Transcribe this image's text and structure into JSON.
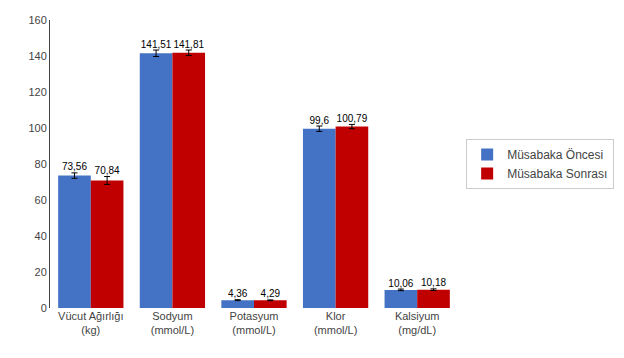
{
  "chart_data": {
    "type": "bar",
    "categories": [
      "Vücut Ağırlığı\n(kg)",
      "Sodyum\n(mmol/L)",
      "Potasyum\n(mmol/L)",
      "Klor\n(mmol/L)",
      "Kalsiyum\n(mg/dL)"
    ],
    "series": [
      {
        "name": "Müsabaka Öncesi",
        "color": "#4472C4",
        "values": [
          73.56,
          141.51,
          4.36,
          99.6,
          10.06
        ],
        "errors": [
          1.5,
          1.8,
          0.25,
          1.5,
          0.45
        ],
        "value_labels": [
          "73,56",
          "141,51",
          "4,36",
          "99,6",
          "10,06"
        ]
      },
      {
        "name": "Müsabaka Sonrası",
        "color": "#C00000",
        "values": [
          70.84,
          141.81,
          4.29,
          100.79,
          10.18
        ],
        "errors": [
          2.2,
          1.5,
          0.2,
          1.2,
          0.45
        ],
        "value_labels": [
          "70,84",
          "141,81",
          "4,29",
          "100,79",
          "10,18"
        ]
      }
    ],
    "ylim": [
      0,
      160
    ],
    "yticks": [
      0,
      20,
      40,
      60,
      80,
      100,
      120,
      140,
      160
    ],
    "grid": false,
    "legend": "right",
    "data_labels": true
  }
}
